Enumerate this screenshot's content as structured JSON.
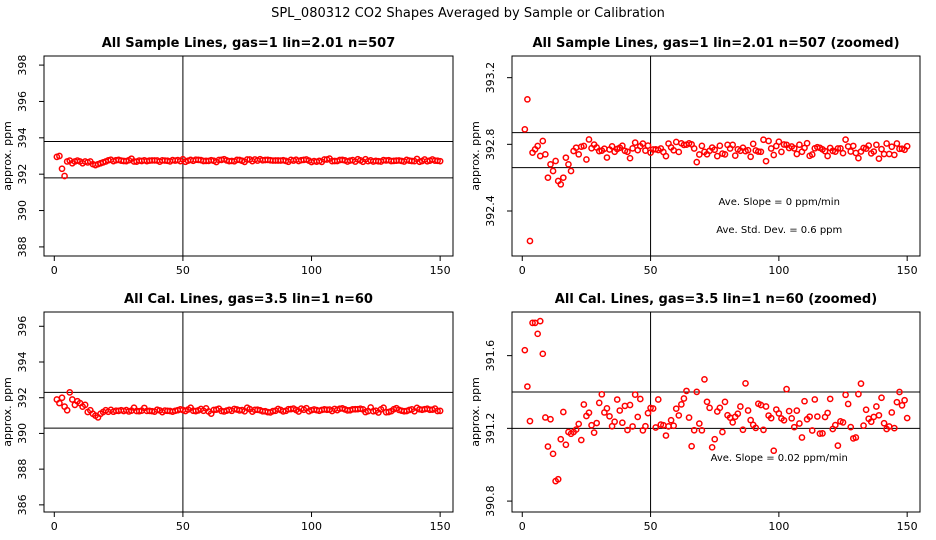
{
  "main_title": "SPL_080312  CO2 Shapes Averaged by Sample or Calibration",
  "point_color": "#ff0000",
  "chart_data": [
    {
      "type": "scatter",
      "title": "All Sample Lines, gas=1 lin=2.01 n=507",
      "ylabel": "approx. ppm",
      "xlim": [
        -4,
        155
      ],
      "ylim": [
        387.5,
        398.5
      ],
      "xticks": [
        0,
        50,
        100,
        150
      ],
      "yticks": [
        388,
        390,
        392,
        394,
        396,
        398
      ],
      "vline": 50,
      "hlines": [
        393.8,
        391.8
      ],
      "annotations": [],
      "base": 392.75,
      "noise": 0.04,
      "seed": 3,
      "early": [
        [
          1,
          392.95
        ],
        [
          2,
          393.0
        ],
        [
          3,
          392.3
        ],
        [
          4,
          391.9
        ],
        [
          5,
          392.7
        ],
        [
          6,
          392.75
        ],
        [
          7,
          392.6
        ],
        [
          8,
          392.7
        ],
        [
          9,
          392.75
        ],
        [
          10,
          392.7
        ],
        [
          11,
          392.6
        ],
        [
          12,
          392.7
        ],
        [
          13,
          392.65
        ],
        [
          14,
          392.7
        ],
        [
          15,
          392.55
        ],
        [
          16,
          392.5
        ],
        [
          17,
          392.55
        ],
        [
          18,
          392.6
        ],
        [
          19,
          392.65
        ],
        [
          20,
          392.7
        ]
      ]
    },
    {
      "type": "scatter",
      "title": "All Sample Lines, gas=1 lin=2.01 n=507 (zoomed)",
      "ylabel": "approx. ppm",
      "xlim": [
        -4,
        155
      ],
      "ylim": [
        392.13,
        393.33
      ],
      "xticks": [
        0,
        50,
        100,
        150
      ],
      "yticks": [
        392.4,
        392.8,
        393.2
      ],
      "vline": 50,
      "hlines": [
        392.87,
        392.66
      ],
      "annotations": [
        "Ave. Slope =  0  ppm/min",
        "Ave. Std. Dev. =  0.6  ppm"
      ],
      "base": 392.77,
      "noise": 0.03,
      "seed": 7,
      "early": [
        [
          1,
          392.89
        ],
        [
          2,
          393.07
        ],
        [
          3,
          392.22
        ],
        [
          4,
          392.75
        ],
        [
          5,
          392.77
        ],
        [
          6,
          392.79
        ],
        [
          7,
          392.73
        ],
        [
          8,
          392.82
        ],
        [
          9,
          392.74
        ],
        [
          10,
          392.6
        ],
        [
          11,
          392.68
        ],
        [
          12,
          392.64
        ],
        [
          13,
          392.7
        ],
        [
          14,
          392.58
        ],
        [
          15,
          392.56
        ],
        [
          16,
          392.6
        ],
        [
          17,
          392.72
        ],
        [
          18,
          392.68
        ],
        [
          19,
          392.64
        ],
        [
          20,
          392.76
        ],
        [
          21,
          392.78
        ],
        [
          22,
          392.74
        ]
      ]
    },
    {
      "type": "scatter",
      "title": "All Cal. Lines, gas=3.5 lin=1 n=60",
      "ylabel": "approx. ppm",
      "xlim": [
        -4,
        155
      ],
      "ylim": [
        385.6,
        396.8
      ],
      "xticks": [
        0,
        50,
        100,
        150
      ],
      "yticks": [
        386,
        388,
        390,
        392,
        394,
        396
      ],
      "vline": 50,
      "hlines": [
        392.3,
        390.3
      ],
      "annotations": [],
      "base": 391.3,
      "noise": 0.07,
      "seed": 11,
      "early": [
        [
          1,
          391.9
        ],
        [
          2,
          391.7
        ],
        [
          3,
          392.0
        ],
        [
          4,
          391.5
        ],
        [
          5,
          391.3
        ],
        [
          6,
          392.3
        ],
        [
          7,
          391.9
        ],
        [
          8,
          391.6
        ],
        [
          9,
          391.8
        ],
        [
          10,
          391.7
        ],
        [
          11,
          391.5
        ],
        [
          12,
          391.6
        ],
        [
          13,
          391.2
        ],
        [
          14,
          391.3
        ],
        [
          15,
          391.1
        ],
        [
          16,
          391.0
        ],
        [
          17,
          390.9
        ],
        [
          18,
          391.1
        ],
        [
          19,
          391.2
        ],
        [
          20,
          391.3
        ]
      ]
    },
    {
      "type": "scatter",
      "title": "All Cal. Lines, gas=3.5 lin=1 n=60 (zoomed)",
      "ylabel": "approx. ppm",
      "xlim": [
        -4,
        155
      ],
      "ylim": [
        390.74,
        391.84
      ],
      "xticks": [
        0,
        50,
        100,
        150
      ],
      "yticks": [
        390.8,
        391.2,
        391.6
      ],
      "vline": 50,
      "hlines": [
        391.4,
        391.2
      ],
      "annotations": [
        "Ave. Slope =  0.02  ppm/min"
      ],
      "base": 391.27,
      "noise": 0.09,
      "seed": 19,
      "early": [
        [
          1,
          391.63
        ],
        [
          2,
          391.43
        ],
        [
          3,
          391.24
        ],
        [
          4,
          391.78
        ],
        [
          5,
          391.78
        ],
        [
          6,
          391.72
        ],
        [
          7,
          391.79
        ],
        [
          8,
          391.61
        ],
        [
          9,
          391.26
        ],
        [
          10,
          391.1
        ],
        [
          11,
          391.25
        ],
        [
          12,
          391.06
        ],
        [
          13,
          390.91
        ],
        [
          14,
          390.92
        ],
        [
          15,
          391.14
        ],
        [
          16,
          391.29
        ],
        [
          17,
          391.11
        ],
        [
          18,
          391.18
        ],
        [
          19,
          391.17
        ],
        [
          20,
          391.18
        ]
      ]
    }
  ]
}
